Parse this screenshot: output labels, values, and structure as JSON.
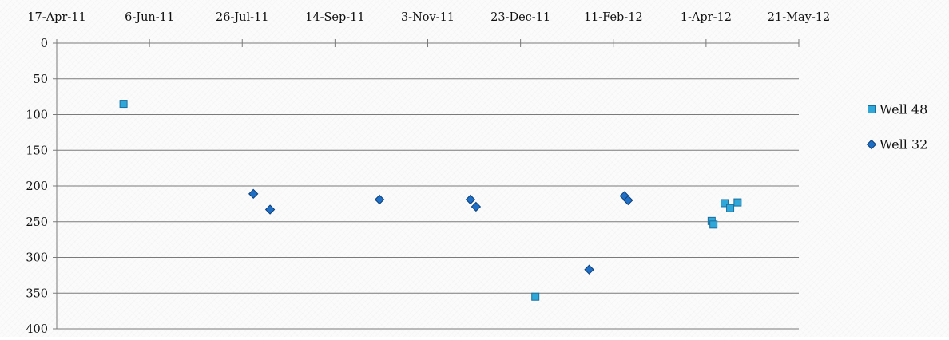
{
  "chart_data": {
    "type": "scatter",
    "title": "",
    "xlabel": "",
    "ylabel": "",
    "x_axis_position": "top",
    "y_axis_reversed": true,
    "xlim": [
      "2011-04-17",
      "2012-05-21"
    ],
    "ylim": [
      0,
      400
    ],
    "x_tick_labels": [
      "17-Apr-11",
      "6-Jun-11",
      "26-Jul-11",
      "14-Sep-11",
      "3-Nov-11",
      "23-Dec-11",
      "11-Feb-12",
      "1-Apr-12",
      "21-May-12"
    ],
    "x_ticks": [
      "2011-04-17",
      "2011-06-06",
      "2011-07-26",
      "2011-09-14",
      "2011-11-03",
      "2011-12-23",
      "2012-02-11",
      "2012-04-01",
      "2012-05-21"
    ],
    "y_ticks": [
      0,
      50,
      100,
      150,
      200,
      250,
      300,
      350,
      400
    ],
    "y_tick_labels": [
      "0",
      "50",
      "100",
      "150",
      "200",
      "250",
      "300",
      "350",
      "400"
    ],
    "grid": "horizontal",
    "legend_position": "right",
    "series": [
      {
        "name": "Well 48",
        "marker": "square",
        "color": "#2FA8D9",
        "edge_color": "#1A6E9C",
        "points": [
          {
            "x": "2011-05-23",
            "y": 85
          },
          {
            "x": "2011-12-31",
            "y": 355
          },
          {
            "x": "2012-04-04",
            "y": 249
          },
          {
            "x": "2012-04-05",
            "y": 254
          },
          {
            "x": "2012-04-11",
            "y": 224
          },
          {
            "x": "2012-04-14",
            "y": 231
          },
          {
            "x": "2012-04-18",
            "y": 223
          }
        ]
      },
      {
        "name": "Well 32",
        "marker": "diamond",
        "color": "#1F6FC4",
        "edge_color": "#0D3F7A",
        "points": [
          {
            "x": "2011-08-01",
            "y": 211
          },
          {
            "x": "2011-08-10",
            "y": 233
          },
          {
            "x": "2011-10-08",
            "y": 219
          },
          {
            "x": "2011-11-26",
            "y": 219
          },
          {
            "x": "2011-11-29",
            "y": 229
          },
          {
            "x": "2012-01-29",
            "y": 317
          },
          {
            "x": "2012-02-17",
            "y": 214
          },
          {
            "x": "2012-02-19",
            "y": 220
          }
        ]
      }
    ]
  }
}
